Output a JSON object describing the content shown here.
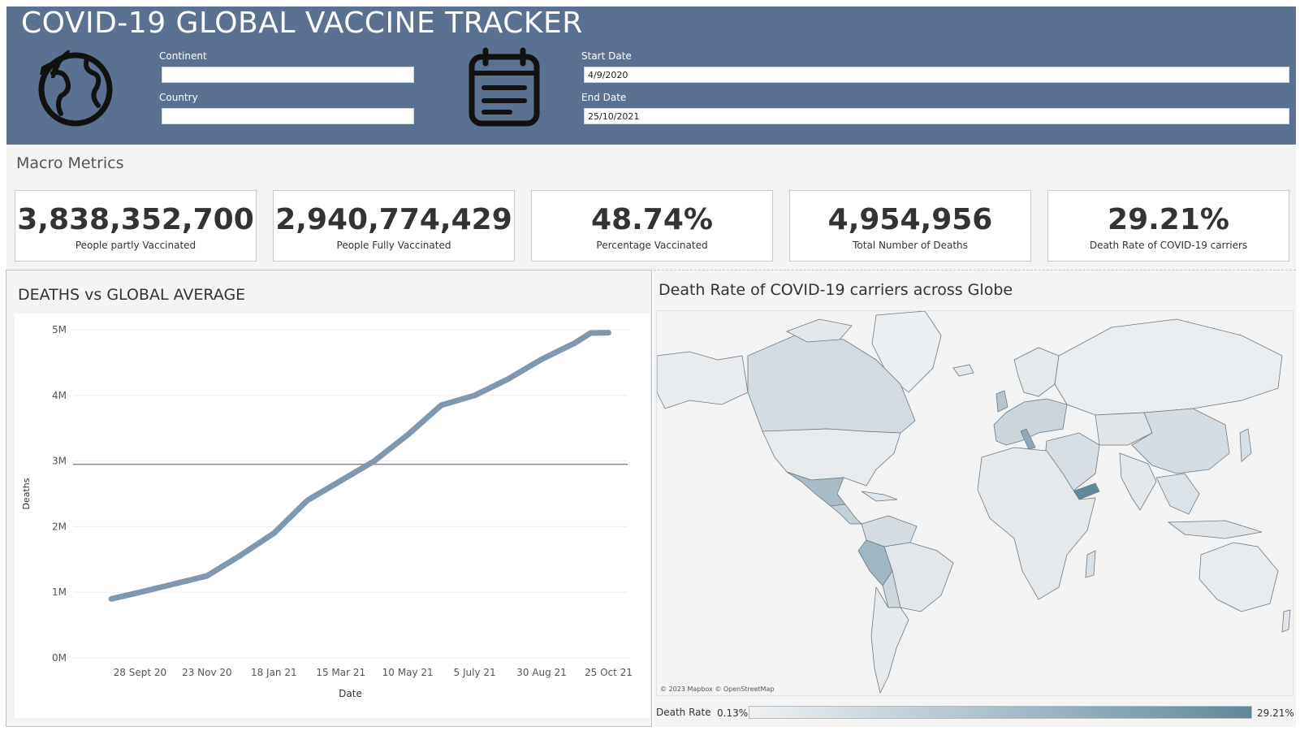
{
  "header": {
    "title": "COVID-19 GLOBAL VACCINE TRACKER",
    "continent_label": "Continent",
    "continent_value": "",
    "country_label": "Country",
    "country_value": "",
    "start_date_label": "Start Date",
    "start_date_value": "4/9/2020",
    "end_date_label": "End Date",
    "end_date_value": "25/10/2021",
    "colors": {
      "header_bg": "#5b7191",
      "header_text": "#ffffff"
    },
    "icons": [
      "globe-airplane-icon",
      "calendar-icon"
    ]
  },
  "macro": {
    "title": "Macro Metrics",
    "kpis": [
      {
        "value": "3,838,352,700",
        "label": "People partly Vaccinated"
      },
      {
        "value": "2,940,774,429",
        "label": "People Fully Vaccinated"
      },
      {
        "value": "48.74%",
        "label": "Percentage Vaccinated"
      },
      {
        "value": "4,954,956",
        "label": "Total Number of Deaths"
      },
      {
        "value": "29.21%",
        "label": "Death Rate of COVID-19 carriers"
      }
    ]
  },
  "line_chart": {
    "title": "DEATHS vs GLOBAL AVERAGE",
    "line_color": "#8098ad",
    "reference_color": "#888888"
  },
  "map": {
    "title": "Death Rate of COVID-19 carriers across Globe",
    "credit": "© 2023 Mapbox © OpenStreetMap",
    "legend_title": "Death Rate",
    "legend_min": "0.13%",
    "legend_max": "29.21%"
  },
  "chart_data": {
    "type": "line",
    "xlabel": "Date",
    "ylabel": "Deaths",
    "x_ticks": [
      "28 Sept 20",
      "23 Nov 20",
      "18 Jan 21",
      "15 Mar 21",
      "10 May 21",
      "5 July 21",
      "30 Aug 21",
      "25 Oct 21"
    ],
    "y_ticks": [
      "0M",
      "1M",
      "2M",
      "3M",
      "4M",
      "5M"
    ],
    "ylim": [
      0,
      5000000
    ],
    "grid": true,
    "reference_line": {
      "value": 2950000
    },
    "series": [
      {
        "x": [
          "2020-09-04",
          "2020-09-28",
          "2020-10-25",
          "2020-11-23",
          "2020-12-20",
          "2021-01-18",
          "2021-02-15",
          "2021-03-15",
          "2021-04-12",
          "2021-05-10",
          "2021-06-07",
          "2021-07-05",
          "2021-08-02",
          "2021-08-30",
          "2021-09-27",
          "2021-10-10",
          "2021-10-25"
        ],
        "values": [
          900000,
          1000000,
          1120000,
          1250000,
          1550000,
          1900000,
          2400000,
          2700000,
          3000000,
          3400000,
          3850000,
          4000000,
          4250000,
          4550000,
          4800000,
          4950000,
          4954956
        ]
      }
    ]
  }
}
